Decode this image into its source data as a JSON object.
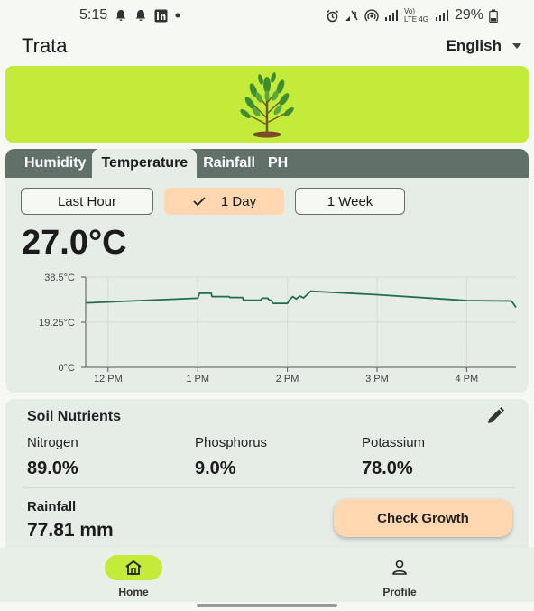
{
  "status_bar": {
    "time": "5:15",
    "battery": "29%",
    "network": "Vo) LTE 4G"
  },
  "app": {
    "title": "Trata",
    "language": "English"
  },
  "tabs": [
    {
      "label": "Humidity",
      "active": false
    },
    {
      "label": "Temperature",
      "active": true
    },
    {
      "label": "Rainfall",
      "active": false
    },
    {
      "label": "PH",
      "active": false
    }
  ],
  "ranges": [
    {
      "label": "Last Hour",
      "selected": false
    },
    {
      "label": "1 Day",
      "selected": true
    },
    {
      "label": "1 Week",
      "selected": false
    }
  ],
  "current_value": "27.0°C",
  "chart_data": {
    "type": "line",
    "x_ticks": [
      "12 PM",
      "1 PM",
      "2 PM",
      "3 PM",
      "4 PM"
    ],
    "y_ticks": [
      "38.5°C",
      "19.25°C",
      "0°C"
    ],
    "ylim": [
      0,
      38.5
    ],
    "x_unit": "hour",
    "xlim": [
      11.75,
      16.55
    ],
    "series": [
      {
        "color": "#1f6e4e",
        "points": [
          [
            11.75,
            27.5
          ],
          [
            13.0,
            29.5
          ],
          [
            13.02,
            31.6
          ],
          [
            13.15,
            31.6
          ],
          [
            13.16,
            30.2
          ],
          [
            13.35,
            30.2
          ],
          [
            13.36,
            29.8
          ],
          [
            13.5,
            29.8
          ],
          [
            13.51,
            28.6
          ],
          [
            13.7,
            28.6
          ],
          [
            13.72,
            29.5
          ],
          [
            13.78,
            29.5
          ],
          [
            13.8,
            28.6
          ],
          [
            13.82,
            28.6
          ],
          [
            13.84,
            27.3
          ],
          [
            14.0,
            27.3
          ],
          [
            14.02,
            28.6
          ],
          [
            14.06,
            30.2
          ],
          [
            14.1,
            29.2
          ],
          [
            14.14,
            30.4
          ],
          [
            14.18,
            29.6
          ],
          [
            14.26,
            32.5
          ],
          [
            15.0,
            31.0
          ],
          [
            16.0,
            28.5
          ],
          [
            16.5,
            28.3
          ],
          [
            16.55,
            25.6
          ]
        ]
      }
    ]
  },
  "soil": {
    "title": "Soil Nutrients",
    "nutrients": [
      {
        "label": "Nitrogen",
        "value": "89.0%"
      },
      {
        "label": "Phosphorus",
        "value": "9.0%"
      },
      {
        "label": "Potassium",
        "value": "78.0%"
      }
    ],
    "rainfall_label": "Rainfall",
    "rainfall_value": "77.81 mm",
    "check_growth_label": "Check Growth"
  },
  "nav": {
    "home_label": "Home",
    "profile_label": "Profile"
  },
  "colors": {
    "accent_green": "#c4ea3a",
    "tab_bar": "#62706a",
    "chip_selected": "#ffd8b2",
    "line": "#1f6e4e"
  }
}
